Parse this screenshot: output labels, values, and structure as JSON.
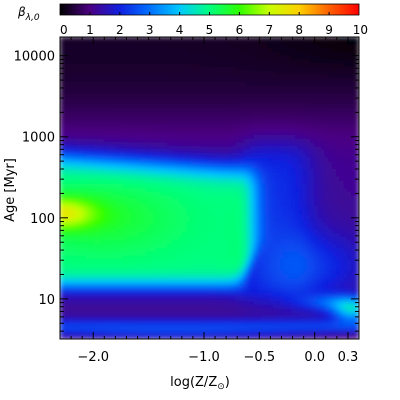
{
  "chart_data": {
    "type": "heatmap",
    "title": "",
    "colorbar": {
      "label_main": "β",
      "label_sub": "λ,0",
      "range": [
        0,
        10
      ],
      "ticks": [
        "0",
        "1",
        "2",
        "3",
        "4",
        "5",
        "6",
        "7",
        "8",
        "9",
        "10"
      ],
      "colormap": "rainbow (black-purple-blue-cyan-green-yellow-red)"
    },
    "xaxis": {
      "label_main": "log(Z/Z",
      "label_sun": "⊙",
      "label_end": ")",
      "range": [
        -2.3,
        0.4
      ],
      "ticks": [
        {
          "value": -2.0,
          "label": "−2.0"
        },
        {
          "value": -1.0,
          "label": "−1.0"
        },
        {
          "value": -0.5,
          "label": "−0.5"
        },
        {
          "value": 0.0,
          "label": "0.0"
        },
        {
          "value": 0.3,
          "label": "0.3"
        }
      ]
    },
    "yaxis": {
      "label": "Age [Myr]",
      "scale": "log",
      "range": [
        3.2,
        17000
      ],
      "ticks": [
        {
          "value": 10,
          "label": "10"
        },
        {
          "value": 100,
          "label": "100"
        },
        {
          "value": 1000,
          "label": "1000"
        },
        {
          "value": 10000,
          "label": "10000"
        }
      ]
    },
    "grid": false,
    "features": [
      {
        "name": "peak",
        "logZ": -2.3,
        "age_Myr": 110,
        "value": 7.0
      },
      {
        "name": "green plateau",
        "logZ_range": [
          -2.3,
          -0.55
        ],
        "age_range_Myr": [
          12,
          700
        ],
        "value": 5.0
      },
      {
        "name": "blue bands",
        "age_Myr": [
          4,
          5
        ],
        "value": 2.0
      },
      {
        "name": "old population",
        "age_range_Myr": [
          2000,
          17000
        ],
        "value": 0.8
      },
      {
        "name": "high metallicity young",
        "logZ": 0.35,
        "age_Myr": 7,
        "value": 4.2
      }
    ]
  }
}
